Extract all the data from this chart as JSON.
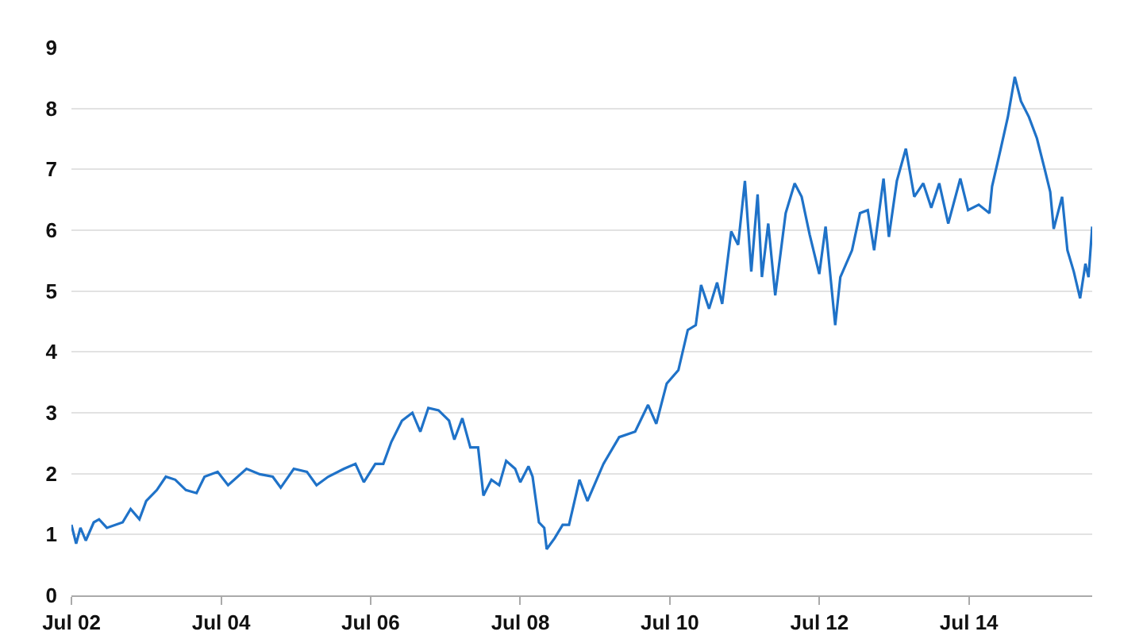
{
  "chart_data": {
    "type": "line",
    "line_style": "solid",
    "marker": "none",
    "grid": "y",
    "x": [
      "2002-07-01",
      "2002-07-24",
      "2002-08-14",
      "2002-09-09",
      "2002-10-18",
      "2002-11-13",
      "2002-12-21",
      "2003-03-08",
      "2003-04-16",
      "2003-05-29",
      "2003-07-01",
      "2003-08-22",
      "2003-10-05",
      "2003-11-20",
      "2004-01-11",
      "2004-03-03",
      "2004-04-11",
      "2004-06-14",
      "2004-08-04",
      "2004-11-02",
      "2005-01-06",
      "2005-03-10",
      "2005-04-18",
      "2005-06-21",
      "2005-08-24",
      "2005-10-10",
      "2005-12-06",
      "2006-02-21",
      "2006-04-18",
      "2006-05-29",
      "2006-07-24",
      "2006-09-01",
      "2006-10-10",
      "2006-12-01",
      "2007-01-21",
      "2007-03-01",
      "2007-04-09",
      "2007-05-29",
      "2007-07-19",
      "2007-08-14",
      "2007-09-22",
      "2007-10-31",
      "2007-12-08",
      "2008-01-03",
      "2008-02-11",
      "2008-03-20",
      "2008-04-23",
      "2008-06-06",
      "2008-07-01",
      "2008-08-10",
      "2008-08-30",
      "2008-09-30",
      "2008-10-26",
      "2008-11-07",
      "2008-12-16",
      "2009-01-24",
      "2009-02-24",
      "2009-04-16",
      "2009-05-25",
      "2009-08-11",
      "2009-10-27",
      "2010-01-13",
      "2010-03-17",
      "2010-04-26",
      "2010-06-16",
      "2010-08-12",
      "2010-09-27",
      "2010-11-05",
      "2010-12-01",
      "2011-01-09",
      "2011-02-17",
      "2011-03-14",
      "2011-04-27",
      "2011-05-31",
      "2011-07-03",
      "2011-08-03",
      "2011-09-03",
      "2011-09-24",
      "2011-10-25",
      "2011-11-28",
      "2012-01-18",
      "2012-03-02",
      "2012-04-05",
      "2012-05-14",
      "2012-06-30",
      "2012-07-31",
      "2012-09-16",
      "2012-10-11",
      "2012-12-07",
      "2013-01-15",
      "2013-02-22",
      "2013-03-25",
      "2013-05-10",
      "2013-06-05",
      "2013-07-14",
      "2013-08-27",
      "2013-10-07",
      "2013-11-20",
      "2013-12-29",
      "2014-02-06",
      "2014-03-22",
      "2014-05-20",
      "2014-06-27",
      "2014-08-18",
      "2014-10-09",
      "2014-10-22",
      "2014-11-30",
      "2015-01-07",
      "2015-02-10",
      "2015-03-12",
      "2015-04-20",
      "2015-05-29",
      "2015-07-07",
      "2015-08-02",
      "2015-08-19",
      "2015-09-29",
      "2015-10-25",
      "2015-11-25",
      "2015-12-26",
      "2016-01-21",
      "2016-02-05",
      "2016-02-23"
    ],
    "series": [
      {
        "color": "#1f72c8",
        "values": [
          1.16,
          0.85,
          1.11,
          0.9,
          1.2,
          1.25,
          1.11,
          1.2,
          1.42,
          1.25,
          1.55,
          1.73,
          1.95,
          1.9,
          1.73,
          1.68,
          1.95,
          2.03,
          1.81,
          2.08,
          1.99,
          1.95,
          1.77,
          2.08,
          2.03,
          1.81,
          1.95,
          2.08,
          2.16,
          1.86,
          2.16,
          2.16,
          2.52,
          2.87,
          3.0,
          2.69,
          3.08,
          3.04,
          2.87,
          2.56,
          2.91,
          2.43,
          2.43,
          1.64,
          1.9,
          1.81,
          2.21,
          2.08,
          1.86,
          2.12,
          1.95,
          1.2,
          1.11,
          0.76,
          0.94,
          1.16,
          1.16,
          1.9,
          1.55,
          2.16,
          2.6,
          2.69,
          3.13,
          2.82,
          3.48,
          3.7,
          4.36,
          4.44,
          5.1,
          4.71,
          5.14,
          4.79,
          5.98,
          5.76,
          6.81,
          5.32,
          6.59,
          5.23,
          6.11,
          4.93,
          6.28,
          6.77,
          6.55,
          5.93,
          5.28,
          6.06,
          4.44,
          5.23,
          5.67,
          6.28,
          6.33,
          5.67,
          6.85,
          5.89,
          6.81,
          7.34,
          6.55,
          6.77,
          6.37,
          6.77,
          6.11,
          6.85,
          6.33,
          6.42,
          6.28,
          6.72,
          7.29,
          7.86,
          8.52,
          8.12,
          7.86,
          7.51,
          6.99,
          6.63,
          6.02,
          6.55,
          5.67,
          5.32,
          4.88,
          5.45,
          5.23,
          6.06
        ]
      }
    ],
    "xlim": [
      "2002-07-01",
      "2016-02-23"
    ],
    "xticks": [
      {
        "value": "2002-07-01",
        "label": "Jul 02"
      },
      {
        "value": "2004-07-01",
        "label": "Jul 04"
      },
      {
        "value": "2006-07-01",
        "label": "Jul 06"
      },
      {
        "value": "2008-07-01",
        "label": "Jul 08"
      },
      {
        "value": "2010-07-01",
        "label": "Jul 10"
      },
      {
        "value": "2012-07-01",
        "label": "Jul 12"
      },
      {
        "value": "2014-07-01",
        "label": "Jul 14"
      }
    ],
    "ylim": [
      0,
      9
    ],
    "yticks": [
      0,
      1,
      2,
      3,
      4,
      5,
      6,
      7,
      8,
      9
    ]
  }
}
